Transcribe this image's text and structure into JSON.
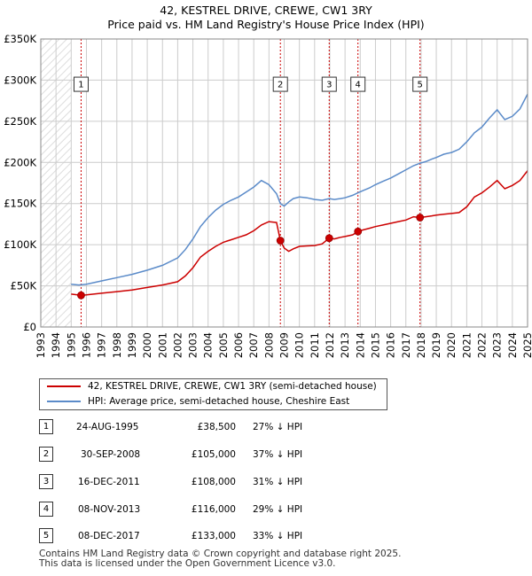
{
  "chart_data": {
    "type": "line",
    "title": "42, KESTREL DRIVE, CREWE, CW1 3RY",
    "subtitle": "Price paid vs. HM Land Registry's House Price Index (HPI)",
    "xlim": [
      1993.0,
      2025.0
    ],
    "ylim": [
      0,
      350000
    ],
    "y_ticks": [
      0,
      50000,
      100000,
      150000,
      200000,
      250000,
      300000,
      350000
    ],
    "y_tick_labels": [
      "£0",
      "£50K",
      "£100K",
      "£150K",
      "£200K",
      "£250K",
      "£300K",
      "£350K"
    ],
    "x_ticks": [
      1993,
      1994,
      1995,
      1996,
      1997,
      1998,
      1999,
      2000,
      2001,
      2002,
      2003,
      2004,
      2005,
      2006,
      2007,
      2008,
      2009,
      2010,
      2011,
      2012,
      2013,
      2014,
      2015,
      2016,
      2017,
      2018,
      2019,
      2020,
      2021,
      2022,
      2023,
      2024,
      2025
    ],
    "x_tick_labels": [
      "1993",
      "1994",
      "1995",
      "1996",
      "1997",
      "1998",
      "1999",
      "2000",
      "2001",
      "2002",
      "2003",
      "2004",
      "2005",
      "2006",
      "2007",
      "2008",
      "2009",
      "2010",
      "2011",
      "2012",
      "2013",
      "2014",
      "2015",
      "2016",
      "2017",
      "2018",
      "2019",
      "2020",
      "2021",
      "2022",
      "2023",
      "2024",
      "2025"
    ],
    "grid": true,
    "hatched_range": [
      1993.0,
      1995.0
    ],
    "series": [
      {
        "name": "42, KESTREL DRIVE, CREWE, CW1 3RY (semi-detached house)",
        "color": "#cc0000",
        "x": [
          1995.0,
          1995.65,
          1996.0,
          1997.0,
          1998.0,
          1999.0,
          2000.0,
          2001.0,
          2002.0,
          2002.5,
          2003.0,
          2003.5,
          2004.0,
          2004.5,
          2005.0,
          2005.5,
          2006.0,
          2006.5,
          2007.0,
          2007.5,
          2008.0,
          2008.5,
          2008.75,
          2009.0,
          2009.3,
          2009.6,
          2010.0,
          2010.5,
          2011.0,
          2011.5,
          2011.96,
          2012.3,
          2012.7,
          2013.0,
          2013.5,
          2013.85,
          2014.2,
          2014.6,
          2015.0,
          2015.5,
          2016.0,
          2016.5,
          2017.0,
          2017.5,
          2017.93,
          2018.3,
          2018.7,
          2019.0,
          2019.5,
          2020.0,
          2020.5,
          2021.0,
          2021.5,
          2022.0,
          2022.5,
          2023.0,
          2023.5,
          2024.0,
          2024.5,
          2025.0
        ],
        "values": [
          40000,
          38500,
          39000,
          41000,
          43000,
          45000,
          48000,
          51000,
          55000,
          62000,
          72000,
          85000,
          92000,
          98000,
          103000,
          106000,
          109000,
          112000,
          117000,
          124000,
          128000,
          127000,
          105000,
          96000,
          92000,
          95000,
          98000,
          98500,
          99000,
          101000,
          108000,
          107000,
          109000,
          110000,
          112000,
          116000,
          118000,
          120000,
          122000,
          124000,
          126000,
          128000,
          130000,
          134000,
          133000,
          134000,
          135000,
          136000,
          137000,
          138000,
          139000,
          146000,
          158000,
          163000,
          170000,
          178000,
          168000,
          172000,
          178000,
          190000
        ]
      },
      {
        "name": "HPI: Average price, semi-detached house, Cheshire East",
        "color": "#5b8bc9",
        "x": [
          1995.0,
          1995.5,
          1996.0,
          1997.0,
          1998.0,
          1999.0,
          2000.0,
          2001.0,
          2002.0,
          2002.5,
          2003.0,
          2003.5,
          2004.0,
          2004.5,
          2005.0,
          2005.5,
          2006.0,
          2006.5,
          2007.0,
          2007.5,
          2008.0,
          2008.5,
          2008.75,
          2009.0,
          2009.3,
          2009.6,
          2010.0,
          2010.5,
          2011.0,
          2011.5,
          2011.96,
          2012.3,
          2012.7,
          2013.0,
          2013.5,
          2013.85,
          2014.2,
          2014.6,
          2015.0,
          2015.5,
          2016.0,
          2016.5,
          2017.0,
          2017.5,
          2017.93,
          2018.3,
          2018.7,
          2019.0,
          2019.5,
          2020.0,
          2020.5,
          2021.0,
          2021.5,
          2022.0,
          2022.5,
          2023.0,
          2023.5,
          2024.0,
          2024.5,
          2025.0
        ],
        "values": [
          52000,
          51000,
          52000,
          56000,
          60000,
          64000,
          69000,
          75000,
          84000,
          94000,
          107000,
          122000,
          133000,
          142000,
          149000,
          154000,
          158000,
          164000,
          170000,
          178000,
          173000,
          162000,
          150000,
          147000,
          152000,
          156000,
          158000,
          157000,
          155000,
          154000,
          156000,
          155000,
          156000,
          157000,
          160000,
          163000,
          166000,
          169000,
          173000,
          177000,
          181000,
          186000,
          191000,
          196000,
          199000,
          201000,
          204000,
          206000,
          210000,
          212000,
          216000,
          225000,
          236000,
          243000,
          254000,
          264000,
          252000,
          256000,
          265000,
          283000
        ]
      }
    ],
    "sales": [
      {
        "label": "1",
        "x": 1995.65,
        "value": 38500
      },
      {
        "label": "2",
        "x": 2008.75,
        "value": 105000
      },
      {
        "label": "3",
        "x": 2011.96,
        "value": 108000
      },
      {
        "label": "4",
        "x": 2013.85,
        "value": 116000
      },
      {
        "label": "5",
        "x": 2017.93,
        "value": 133000
      }
    ],
    "marker_box_value": 295000,
    "colors": {
      "hatch": "#dddddd",
      "grid": "#cccccc",
      "sale_point": "#cc0000",
      "event_line": "#cc0000",
      "plot_background": "#ffffff"
    }
  },
  "legend": {
    "red_label": "42, KESTREL DRIVE, CREWE, CW1 3RY (semi-detached house)",
    "blue_label": "HPI: Average price, semi-detached house, Cheshire East"
  },
  "table": {
    "rows": [
      {
        "num": "1",
        "date": "24-AUG-1995",
        "price": "£38,500",
        "hpi": "27% ↓ HPI"
      },
      {
        "num": "2",
        "date": "30-SEP-2008",
        "price": "£105,000",
        "hpi": "37% ↓ HPI"
      },
      {
        "num": "3",
        "date": "16-DEC-2011",
        "price": "£108,000",
        "hpi": "31% ↓ HPI"
      },
      {
        "num": "4",
        "date": "08-NOV-2013",
        "price": "£116,000",
        "hpi": "29% ↓ HPI"
      },
      {
        "num": "5",
        "date": "08-DEC-2017",
        "price": "£133,000",
        "hpi": "33% ↓ HPI"
      }
    ]
  },
  "footer": {
    "line1": "Contains HM Land Registry data © Crown copyright and database right 2025.",
    "line2": "This data is licensed under the Open Government Licence v3.0."
  }
}
